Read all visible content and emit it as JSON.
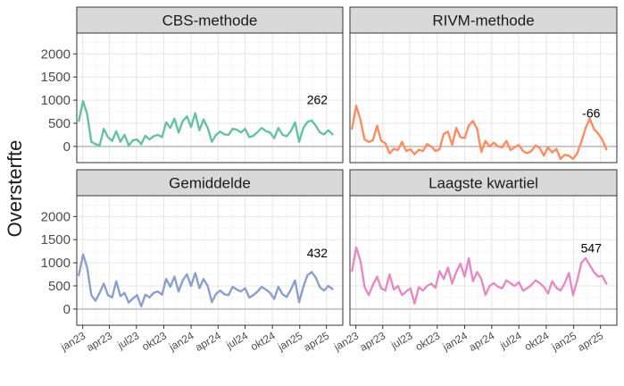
{
  "chart_data": {
    "type": "line",
    "ylabel": "Oversterfte",
    "ylim": [
      -350,
      2450
    ],
    "yticks": [
      0,
      500,
      1000,
      1500,
      2000
    ],
    "xlim": [
      "2022-12-12",
      "2025-05-26"
    ],
    "xticks": [
      {
        "label": "jan23",
        "date": "2023-01-01"
      },
      {
        "label": "apr23",
        "date": "2023-04-01"
      },
      {
        "label": "jul23",
        "date": "2023-07-01"
      },
      {
        "label": "okt23",
        "date": "2023-10-01"
      },
      {
        "label": "jan24",
        "date": "2024-01-01"
      },
      {
        "label": "apr24",
        "date": "2024-04-01"
      },
      {
        "label": "jul24",
        "date": "2024-07-01"
      },
      {
        "label": "okt24",
        "date": "2024-10-01"
      },
      {
        "label": "jan25",
        "date": "2025-01-01"
      },
      {
        "label": "apr25",
        "date": "2025-04-01"
      }
    ],
    "reference_line": 0,
    "grid": true,
    "panels": [
      {
        "title": "CBS-methode",
        "color": "#66C2A5",
        "annotation": "262",
        "annotation_x": "2025-03-01",
        "annotation_y": 1010,
        "x": [
          "2022-12-19",
          "2023-01-02",
          "2023-01-16",
          "2023-01-30",
          "2023-02-13",
          "2023-02-27",
          "2023-03-13",
          "2023-03-27",
          "2023-04-10",
          "2023-04-24",
          "2023-05-08",
          "2023-05-22",
          "2023-06-05",
          "2023-06-19",
          "2023-07-03",
          "2023-07-17",
          "2023-07-31",
          "2023-08-14",
          "2023-08-28",
          "2023-09-11",
          "2023-09-25",
          "2023-10-09",
          "2023-10-23",
          "2023-11-06",
          "2023-11-20",
          "2023-12-04",
          "2023-12-18",
          "2024-01-01",
          "2024-01-15",
          "2024-01-29",
          "2024-02-12",
          "2024-02-26",
          "2024-03-11",
          "2024-03-25",
          "2024-04-08",
          "2024-04-22",
          "2024-05-06",
          "2024-05-20",
          "2024-06-03",
          "2024-06-17",
          "2024-07-01",
          "2024-07-15",
          "2024-07-29",
          "2024-08-12",
          "2024-08-26",
          "2024-09-09",
          "2024-09-23",
          "2024-10-07",
          "2024-10-21",
          "2024-11-04",
          "2024-11-18",
          "2024-12-02",
          "2024-12-16",
          "2024-12-30",
          "2025-01-13",
          "2025-01-27",
          "2025-02-10",
          "2025-02-24",
          "2025-03-10",
          "2025-03-24",
          "2025-04-07",
          "2025-04-21"
        ],
        "values": [
          550,
          980,
          700,
          100,
          50,
          20,
          380,
          200,
          120,
          330,
          100,
          250,
          20,
          130,
          150,
          50,
          230,
          150,
          220,
          250,
          200,
          520,
          400,
          600,
          300,
          550,
          650,
          420,
          720,
          350,
          580,
          400,
          100,
          250,
          320,
          260,
          250,
          380,
          360,
          300,
          380,
          200,
          230,
          310,
          400,
          330,
          300,
          180,
          400,
          250,
          220,
          330,
          520,
          100,
          400,
          530,
          560,
          450,
          300,
          260,
          350,
          262
        ]
      },
      {
        "title": "RIVM-methode",
        "color": "#FC8D62",
        "annotation": "-66",
        "annotation_x": "2025-03-01",
        "annotation_y": 720,
        "x": [
          "2022-12-19",
          "2023-01-02",
          "2023-01-16",
          "2023-01-30",
          "2023-02-13",
          "2023-02-27",
          "2023-03-13",
          "2023-03-27",
          "2023-04-10",
          "2023-04-24",
          "2023-05-08",
          "2023-05-22",
          "2023-06-05",
          "2023-06-19",
          "2023-07-03",
          "2023-07-17",
          "2023-07-31",
          "2023-08-14",
          "2023-08-28",
          "2023-09-11",
          "2023-09-25",
          "2023-10-09",
          "2023-10-23",
          "2023-11-06",
          "2023-11-20",
          "2023-12-04",
          "2023-12-18",
          "2024-01-01",
          "2024-01-15",
          "2024-01-29",
          "2024-02-12",
          "2024-02-26",
          "2024-03-11",
          "2024-03-25",
          "2024-04-08",
          "2024-04-22",
          "2024-05-06",
          "2024-05-20",
          "2024-06-03",
          "2024-06-17",
          "2024-07-01",
          "2024-07-15",
          "2024-07-29",
          "2024-08-12",
          "2024-08-26",
          "2024-09-09",
          "2024-09-23",
          "2024-10-07",
          "2024-10-21",
          "2024-11-04",
          "2024-11-18",
          "2024-12-02",
          "2024-12-16",
          "2024-12-30",
          "2025-01-13",
          "2025-01-27",
          "2025-02-10",
          "2025-02-24",
          "2025-03-10",
          "2025-03-24",
          "2025-04-07",
          "2025-04-21"
        ],
        "values": [
          380,
          880,
          580,
          150,
          100,
          130,
          450,
          120,
          70,
          -150,
          -50,
          -80,
          100,
          -100,
          -60,
          -170,
          -70,
          -100,
          50,
          0,
          -100,
          -60,
          270,
          320,
          30,
          400,
          200,
          180,
          450,
          550,
          380,
          -120,
          120,
          0,
          80,
          0,
          -20,
          120,
          -80,
          -20,
          30,
          -100,
          -150,
          -100,
          20,
          -30,
          -200,
          -20,
          -130,
          -50,
          -270,
          -180,
          -200,
          -270,
          -150,
          100,
          400,
          600,
          380,
          280,
          150,
          -66
        ]
      },
      {
        "title": "Gemiddelde",
        "color": "#8DA0CB",
        "annotation": "432",
        "annotation_x": "2025-03-01",
        "annotation_y": 1210,
        "x": [
          "2022-12-19",
          "2023-01-02",
          "2023-01-16",
          "2023-01-30",
          "2023-02-13",
          "2023-02-27",
          "2023-03-13",
          "2023-03-27",
          "2023-04-10",
          "2023-04-24",
          "2023-05-08",
          "2023-05-22",
          "2023-06-05",
          "2023-06-19",
          "2023-07-03",
          "2023-07-17",
          "2023-07-31",
          "2023-08-14",
          "2023-08-28",
          "2023-09-11",
          "2023-09-25",
          "2023-10-09",
          "2023-10-23",
          "2023-11-06",
          "2023-11-20",
          "2023-12-04",
          "2023-12-18",
          "2024-01-01",
          "2024-01-15",
          "2024-01-29",
          "2024-02-12",
          "2024-02-26",
          "2024-03-11",
          "2024-03-25",
          "2024-04-08",
          "2024-04-22",
          "2024-05-06",
          "2024-05-20",
          "2024-06-03",
          "2024-06-17",
          "2024-07-01",
          "2024-07-15",
          "2024-07-29",
          "2024-08-12",
          "2024-08-26",
          "2024-09-09",
          "2024-09-23",
          "2024-10-07",
          "2024-10-21",
          "2024-11-04",
          "2024-11-18",
          "2024-12-02",
          "2024-12-16",
          "2024-12-30",
          "2025-01-13",
          "2025-01-27",
          "2025-02-10",
          "2025-02-24",
          "2025-03-10",
          "2025-03-24",
          "2025-04-07",
          "2025-04-21"
        ],
        "values": [
          730,
          1180,
          900,
          300,
          180,
          350,
          550,
          300,
          250,
          600,
          280,
          350,
          140,
          230,
          300,
          60,
          310,
          250,
          350,
          380,
          310,
          650,
          480,
          700,
          380,
          620,
          750,
          500,
          780,
          450,
          650,
          500,
          150,
          330,
          400,
          320,
          300,
          480,
          420,
          380,
          450,
          250,
          300,
          380,
          480,
          420,
          350,
          220,
          480,
          320,
          260,
          420,
          620,
          150,
          480,
          730,
          800,
          680,
          470,
          400,
          500,
          432
        ]
      },
      {
        "title": "Laagste kwartiel",
        "color": "#E78AC3",
        "annotation": "547",
        "annotation_x": "2025-03-01",
        "annotation_y": 1320,
        "x": [
          "2022-12-19",
          "2023-01-02",
          "2023-01-16",
          "2023-01-30",
          "2023-02-13",
          "2023-02-27",
          "2023-03-13",
          "2023-03-27",
          "2023-04-10",
          "2023-04-24",
          "2023-05-08",
          "2023-05-22",
          "2023-06-05",
          "2023-06-19",
          "2023-07-03",
          "2023-07-17",
          "2023-07-31",
          "2023-08-14",
          "2023-08-28",
          "2023-09-11",
          "2023-09-25",
          "2023-10-09",
          "2023-10-23",
          "2023-11-06",
          "2023-11-20",
          "2023-12-04",
          "2023-12-18",
          "2024-01-01",
          "2024-01-15",
          "2024-01-29",
          "2024-02-12",
          "2024-02-26",
          "2024-03-11",
          "2024-03-25",
          "2024-04-08",
          "2024-04-22",
          "2024-05-06",
          "2024-05-20",
          "2024-06-03",
          "2024-06-17",
          "2024-07-01",
          "2024-07-15",
          "2024-07-29",
          "2024-08-12",
          "2024-08-26",
          "2024-09-09",
          "2024-09-23",
          "2024-10-07",
          "2024-10-21",
          "2024-11-04",
          "2024-11-18",
          "2024-12-02",
          "2024-12-16",
          "2024-12-30",
          "2025-01-13",
          "2025-01-27",
          "2025-02-10",
          "2025-02-24",
          "2025-03-10",
          "2025-03-24",
          "2025-04-07",
          "2025-04-21"
        ],
        "values": [
          820,
          1330,
          1050,
          480,
          300,
          520,
          700,
          450,
          400,
          750,
          420,
          500,
          300,
          380,
          450,
          120,
          470,
          400,
          500,
          550,
          460,
          820,
          650,
          900,
          550,
          800,
          980,
          700,
          1100,
          600,
          800,
          650,
          300,
          500,
          560,
          480,
          450,
          620,
          560,
          500,
          580,
          400,
          450,
          520,
          620,
          560,
          480,
          340,
          600,
          460,
          400,
          560,
          780,
          300,
          620,
          1000,
          1100,
          950,
          800,
          700,
          720,
          547
        ]
      }
    ]
  }
}
